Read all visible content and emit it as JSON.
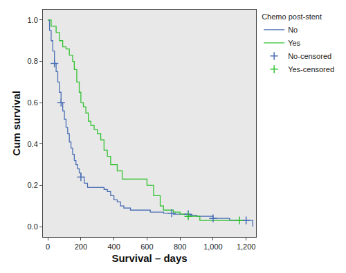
{
  "chart_data": {
    "type": "line",
    "x_label": "Survival – days",
    "y_label": "Cum survival",
    "legend_title": "Chemo post-stent",
    "legend": "right",
    "grid": false,
    "xlim": [
      -30,
      1260
    ],
    "xticks": [
      0,
      200,
      400,
      600,
      800,
      {
        "value": 1000,
        "label": "1,000"
      },
      {
        "value": 1200,
        "label": "1,200"
      }
    ],
    "ylim": [
      -0.05,
      1.05
    ],
    "yticks": [
      {
        "value": 0,
        "label": "0.0"
      },
      {
        "value": 0.2,
        "label": "0.2"
      },
      {
        "value": 0.4,
        "label": "0.4"
      },
      {
        "value": 0.6,
        "label": "0.6"
      },
      {
        "value": 0.8,
        "label": "0.8"
      },
      {
        "value": 1,
        "label": "1.0"
      }
    ],
    "series": [
      {
        "name": "No",
        "type": "line",
        "line_style": "step",
        "color": "#4a6fb5",
        "x": [
          0,
          10,
          20,
          30,
          40,
          50,
          60,
          70,
          80,
          90,
          100,
          110,
          120,
          130,
          140,
          150,
          160,
          170,
          180,
          190,
          200,
          220,
          240,
          260,
          300,
          340,
          360,
          380,
          400,
          420,
          440,
          460,
          500,
          560,
          620,
          700,
          760,
          860,
          900,
          1000,
          1100,
          1240
        ],
        "values": [
          1.0,
          0.95,
          0.9,
          0.85,
          0.79,
          0.75,
          0.7,
          0.65,
          0.6,
          0.56,
          0.52,
          0.48,
          0.45,
          0.41,
          0.38,
          0.35,
          0.32,
          0.3,
          0.28,
          0.26,
          0.24,
          0.21,
          0.19,
          0.19,
          0.19,
          0.18,
          0.17,
          0.15,
          0.13,
          0.12,
          0.1,
          0.09,
          0.08,
          0.08,
          0.07,
          0.065,
          0.06,
          0.055,
          0.05,
          0.04,
          0.03,
          0.0
        ]
      },
      {
        "name": "Yes",
        "type": "line",
        "line_style": "step",
        "color": "#33c233",
        "x": [
          0,
          20,
          50,
          70,
          90,
          110,
          130,
          150,
          160,
          175,
          190,
          200,
          215,
          230,
          245,
          260,
          280,
          300,
          320,
          340,
          360,
          380,
          420,
          450,
          600,
          640,
          680,
          700,
          760,
          800,
          850,
          920,
          1160
        ],
        "values": [
          1.0,
          0.97,
          0.94,
          0.9,
          0.87,
          0.86,
          0.83,
          0.8,
          0.76,
          0.7,
          0.65,
          0.6,
          0.58,
          0.55,
          0.51,
          0.49,
          0.47,
          0.45,
          0.42,
          0.37,
          0.34,
          0.3,
          0.27,
          0.23,
          0.2,
          0.15,
          0.1,
          0.08,
          0.07,
          0.06,
          0.05,
          0.03,
          0.03
        ]
      },
      {
        "name": "No-censored",
        "type": "scatter",
        "marker": "cross",
        "color": "#4a6fb5",
        "x": [
          40,
          80,
          200,
          750,
          850,
          1000,
          1200
        ],
        "values": [
          0.79,
          0.6,
          0.24,
          0.065,
          0.06,
          0.04,
          0.03
        ]
      },
      {
        "name": "Yes-censored",
        "type": "scatter",
        "marker": "cross",
        "color": "#33c233",
        "x": [
          850,
          1160
        ],
        "values": [
          0.05,
          0.03
        ]
      }
    ]
  }
}
